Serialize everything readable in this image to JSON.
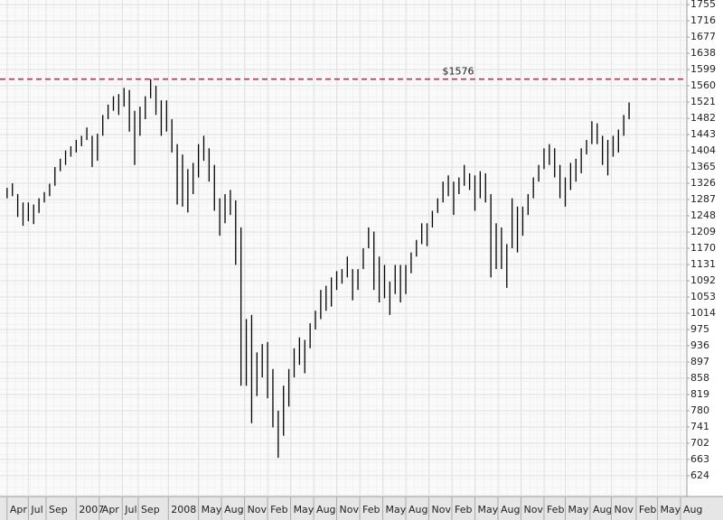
{
  "chart_data": {
    "type": "hilo",
    "color": "#000000",
    "grid": true,
    "xlim": [
      0,
      408
    ],
    "ylim": [
      574,
      1766
    ],
    "yticks": [
      1755,
      1716,
      1677,
      1638,
      1599,
      1560,
      1521,
      1482,
      1443,
      1404,
      1365,
      1326,
      1287,
      1248,
      1209,
      1170,
      1131,
      1092,
      1053,
      1014,
      975,
      936,
      897,
      858,
      819,
      780,
      741,
      702,
      663,
      624
    ],
    "xticks": [
      {
        "value": 4,
        "label": "Apr"
      },
      {
        "value": 16,
        "label": "Jul"
      },
      {
        "value": 26,
        "label": "Sep"
      },
      {
        "value": 43,
        "label": "2007"
      },
      {
        "value": 56,
        "label": "Apr"
      },
      {
        "value": 69,
        "label": "Jul"
      },
      {
        "value": 78,
        "label": "Sep"
      },
      {
        "value": 95,
        "label": "2008"
      },
      {
        "value": 112,
        "label": "May"
      },
      {
        "value": 125,
        "label": "Aug"
      },
      {
        "value": 138,
        "label": "Nov"
      },
      {
        "value": 151,
        "label": "Feb"
      },
      {
        "value": 164,
        "label": "May"
      },
      {
        "value": 177,
        "label": "Aug"
      },
      {
        "value": 190,
        "label": "Nov"
      },
      {
        "value": 203,
        "label": "Feb"
      },
      {
        "value": 216,
        "label": "May"
      },
      {
        "value": 229,
        "label": "Aug"
      },
      {
        "value": 242,
        "label": "Nov"
      },
      {
        "value": 255,
        "label": "Feb"
      },
      {
        "value": 268,
        "label": "May"
      },
      {
        "value": 281,
        "label": "Aug"
      },
      {
        "value": 294,
        "label": "Nov"
      },
      {
        "value": 307,
        "label": "Feb"
      },
      {
        "value": 319,
        "label": "May"
      },
      {
        "value": 333,
        "label": "Aug"
      },
      {
        "value": 345,
        "label": "Nov"
      },
      {
        "value": 359,
        "label": "Feb"
      },
      {
        "value": 371,
        "label": "May"
      },
      {
        "value": 384,
        "label": "Aug"
      }
    ],
    "annotation": {
      "value": 1576,
      "label": "$1576",
      "color": "#e0103a"
    },
    "x": [
      4,
      7,
      10,
      13,
      16,
      19,
      22,
      25,
      28,
      31,
      34,
      37,
      40,
      43,
      46,
      49,
      52,
      55,
      58,
      61,
      64,
      67,
      70,
      73,
      76,
      79,
      82,
      85,
      88,
      91,
      94,
      97,
      100,
      103,
      106,
      109,
      112,
      115,
      118,
      121,
      124,
      127,
      130,
      133,
      136,
      139,
      142,
      145,
      148,
      151,
      154,
      157,
      160,
      163,
      166,
      169,
      172,
      175,
      178,
      181,
      184,
      187,
      190,
      193,
      196,
      199,
      202,
      205,
      208,
      211,
      214,
      217,
      220,
      223,
      226,
      229,
      232,
      235,
      238,
      241,
      244,
      247,
      250,
      253,
      256,
      259,
      262,
      265,
      268,
      271,
      274,
      277,
      280,
      283,
      286,
      289,
      292,
      295,
      298,
      301,
      304,
      307,
      310,
      313,
      316,
      319,
      322,
      325,
      328,
      331,
      334,
      337,
      340,
      343,
      346,
      349,
      352,
      355
    ],
    "high": [
      1315,
      1326,
      1300,
      1280,
      1280,
      1275,
      1290,
      1305,
      1325,
      1365,
      1385,
      1405,
      1415,
      1430,
      1440,
      1460,
      1440,
      1445,
      1490,
      1515,
      1535,
      1540,
      1555,
      1550,
      1500,
      1510,
      1535,
      1576,
      1560,
      1525,
      1525,
      1480,
      1420,
      1395,
      1360,
      1375,
      1420,
      1440,
      1410,
      1370,
      1290,
      1300,
      1310,
      1285,
      1220,
      1000,
      1010,
      920,
      940,
      945,
      880,
      780,
      840,
      880,
      930,
      956,
      950,
      990,
      1020,
      1070,
      1080,
      1100,
      1115,
      1120,
      1150,
      1120,
      1120,
      1170,
      1220,
      1210,
      1150,
      1130,
      1090,
      1130,
      1130,
      1130,
      1160,
      1190,
      1230,
      1230,
      1260,
      1290,
      1330,
      1345,
      1330,
      1340,
      1370,
      1350,
      1345,
      1355,
      1350,
      1300,
      1230,
      1220,
      1180,
      1290,
      1270,
      1270,
      1300,
      1340,
      1370,
      1410,
      1420,
      1410,
      1370,
      1340,
      1375,
      1385,
      1410,
      1430,
      1475,
      1470,
      1440,
      1430,
      1440,
      1455,
      1490,
      1520
    ],
    "low": [
      1290,
      1295,
      1245,
      1224,
      1235,
      1228,
      1255,
      1280,
      1295,
      1320,
      1355,
      1370,
      1390,
      1400,
      1415,
      1430,
      1365,
      1380,
      1440,
      1480,
      1500,
      1490,
      1510,
      1450,
      1370,
      1440,
      1480,
      1530,
      1490,
      1440,
      1450,
      1400,
      1275,
      1270,
      1256,
      1300,
      1340,
      1380,
      1330,
      1260,
      1200,
      1230,
      1250,
      1130,
      840,
      840,
      750,
      815,
      860,
      810,
      740,
      667,
      720,
      790,
      860,
      890,
      870,
      930,
      975,
      1000,
      1020,
      1030,
      1070,
      1085,
      1100,
      1045,
      1070,
      1120,
      1170,
      1070,
      1040,
      1050,
      1010,
      1060,
      1040,
      1060,
      1110,
      1150,
      1180,
      1175,
      1220,
      1255,
      1280,
      1295,
      1250,
      1300,
      1320,
      1310,
      1260,
      1290,
      1280,
      1100,
      1120,
      1120,
      1075,
      1170,
      1160,
      1200,
      1250,
      1290,
      1330,
      1360,
      1370,
      1340,
      1290,
      1270,
      1310,
      1330,
      1350,
      1395,
      1420,
      1420,
      1370,
      1345,
      1390,
      1400,
      1440,
      1480
    ]
  }
}
